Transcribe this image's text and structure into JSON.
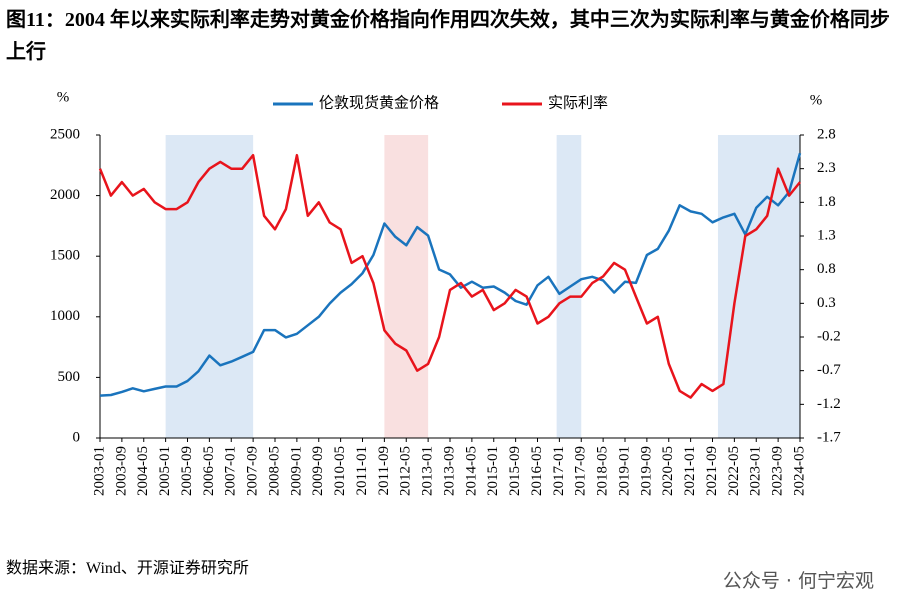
{
  "chart_data": {
    "type": "line",
    "title": "图11：2004 年以来实际利率走势对黄金价格指向作用四次失效，其中三次为实际利率与黄金价格同步上行",
    "source": "数据来源：Wind、开源证券研究所",
    "watermark": "公众号 · 何宁宏观",
    "y_unit": "%",
    "y2_unit": "%",
    "categories": [
      "2003-01",
      null,
      "2003-09",
      null,
      "2004-05",
      null,
      "2005-01",
      null,
      "2005-09",
      null,
      "2006-05",
      null,
      "2007-01",
      null,
      "2007-09",
      null,
      "2008-05",
      null,
      "2009-01",
      null,
      "2009-09",
      null,
      "2010-05",
      null,
      "2011-01",
      null,
      "2011-09",
      null,
      "2012-05",
      null,
      "2013-01",
      null,
      "2013-09",
      null,
      "2014-05",
      null,
      "2015-01",
      null,
      "2015-09",
      null,
      "2016-05",
      null,
      "2017-01",
      null,
      "2017-09",
      null,
      "2018-05",
      null,
      "2019-01",
      null,
      "2019-09",
      null,
      "2020-05",
      null,
      "2021-01",
      null,
      "2021-09",
      null,
      "2022-05",
      null,
      "2023-01",
      null,
      "2023-09",
      null,
      "2024-05"
    ],
    "series": [
      {
        "name": "伦敦现货黄金价格",
        "color": "#1a74bd",
        "axis": "y",
        "values": [
          350,
          355,
          380,
          410,
          385,
          405,
          425,
          425,
          470,
          550,
          680,
          600,
          630,
          670,
          710,
          890,
          890,
          830,
          860,
          930,
          1000,
          1110,
          1200,
          1270,
          1360,
          1510,
          1770,
          1660,
          1590,
          1740,
          1670,
          1390,
          1350,
          1240,
          1290,
          1240,
          1250,
          1200,
          1130,
          1100,
          1260,
          1330,
          1190,
          1250,
          1310,
          1330,
          1300,
          1200,
          1290,
          1280,
          1510,
          1560,
          1710,
          1920,
          1870,
          1850,
          1780,
          1820,
          1850,
          1680,
          1900,
          1990,
          1920,
          2030,
          2350
        ]
      },
      {
        "name": "实际利率",
        "color": "#e8141c",
        "axis": "y2",
        "values": [
          2.3,
          1.9,
          2.1,
          1.9,
          2.0,
          1.8,
          1.7,
          1.7,
          1.8,
          2.1,
          2.3,
          2.4,
          2.3,
          2.3,
          2.5,
          1.6,
          1.4,
          1.7,
          2.5,
          1.6,
          1.8,
          1.5,
          1.4,
          0.9,
          1.0,
          0.6,
          -0.1,
          -0.3,
          -0.4,
          -0.7,
          -0.6,
          -0.2,
          0.5,
          0.6,
          0.4,
          0.5,
          0.2,
          0.3,
          0.5,
          0.4,
          0.0,
          0.1,
          0.3,
          0.4,
          0.4,
          0.6,
          0.7,
          0.9,
          0.8,
          0.4,
          0.0,
          0.1,
          -0.6,
          -1.0,
          -1.1,
          -0.9,
          -1.0,
          -0.9,
          0.3,
          1.3,
          1.4,
          1.6,
          2.3,
          1.9,
          2.1
        ]
      }
    ],
    "ylim": [
      0,
      2500
    ],
    "yticks": [
      0,
      500,
      1000,
      1500,
      2000,
      2500
    ],
    "y2lim": [
      -1.7,
      2.8
    ],
    "y2ticks": [
      -1.7,
      -1.2,
      -0.7,
      -0.2,
      0.3,
      0.8,
      1.3,
      1.8,
      2.3,
      2.8
    ],
    "shaded_periods": [
      {
        "start": "2005-01",
        "end": "2007-09",
        "color": "#dce8f5"
      },
      {
        "start": "2011-09",
        "end": "2013-01",
        "color": "#f9e0e0"
      },
      {
        "start": "2016-12",
        "end": "2017-09",
        "color": "#dce8f5"
      },
      {
        "start": "2021-11",
        "end": "2024-05",
        "color": "#dce8f5"
      }
    ]
  }
}
